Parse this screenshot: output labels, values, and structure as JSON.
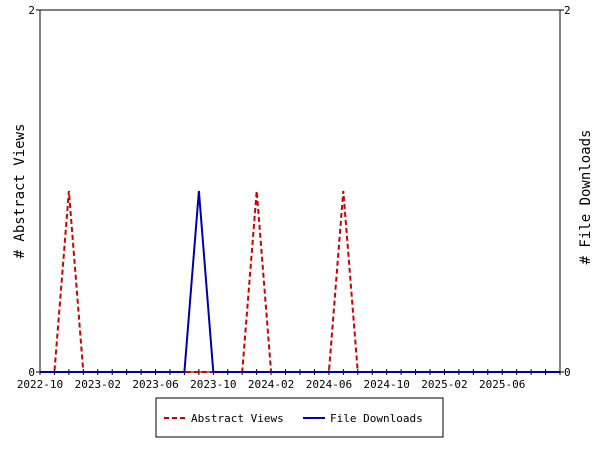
{
  "chart_data": {
    "type": "line",
    "x_tick_labels": [
      "2022-10",
      "2023-02",
      "2023-06",
      "2023-10",
      "2024-02",
      "2024-06",
      "2024-10",
      "2025-02",
      "2025-06"
    ],
    "x_range": [
      "2022-10",
      "2025-10"
    ],
    "y_left": {
      "label": "# Abstract Views",
      "range": [
        0,
        2
      ],
      "ticks": [
        "0",
        "2"
      ]
    },
    "y_right": {
      "label": "# File Downloads",
      "range": [
        0,
        2
      ],
      "ticks": [
        "0",
        "2"
      ]
    },
    "legend_position": "bottom-center",
    "grid": false,
    "series": [
      {
        "name": "Abstract Views",
        "axis": "left",
        "color": "#cc0000",
        "dash": "dashed",
        "x": [
          "2022-10",
          "2022-11",
          "2022-12",
          "2023-01",
          "2023-02",
          "2023-03",
          "2023-04",
          "2023-05",
          "2023-06",
          "2023-07",
          "2023-08",
          "2023-09",
          "2023-10",
          "2023-11",
          "2023-12",
          "2024-01",
          "2024-02",
          "2024-03",
          "2024-04",
          "2024-05",
          "2024-06",
          "2024-07",
          "2024-08",
          "2024-09",
          "2024-10",
          "2024-11",
          "2024-12",
          "2025-01",
          "2025-02",
          "2025-03",
          "2025-04",
          "2025-05",
          "2025-06",
          "2025-07",
          "2025-08",
          "2025-09",
          "2025-10"
        ],
        "values": [
          0,
          0,
          1,
          0,
          0,
          0,
          0,
          0,
          0,
          0,
          0,
          0,
          0,
          0,
          0,
          1,
          0,
          0,
          0,
          0,
          0,
          1,
          0,
          0,
          0,
          0,
          0,
          0,
          0,
          0,
          0,
          0,
          0,
          0,
          0,
          0,
          0
        ]
      },
      {
        "name": "File Downloads",
        "axis": "right",
        "color": "#0000aa",
        "dash": "solid",
        "x": [
          "2022-10",
          "2022-11",
          "2022-12",
          "2023-01",
          "2023-02",
          "2023-03",
          "2023-04",
          "2023-05",
          "2023-06",
          "2023-07",
          "2023-08",
          "2023-09",
          "2023-10",
          "2023-11",
          "2023-12",
          "2024-01",
          "2024-02",
          "2024-03",
          "2024-04",
          "2024-05",
          "2024-06",
          "2024-07",
          "2024-08",
          "2024-09",
          "2024-10",
          "2024-11",
          "2024-12",
          "2025-01",
          "2025-02",
          "2025-03",
          "2025-04",
          "2025-05",
          "2025-06",
          "2025-07",
          "2025-08",
          "2025-09",
          "2025-10"
        ],
        "values": [
          0,
          0,
          0,
          0,
          0,
          0,
          0,
          0,
          0,
          0,
          0,
          1,
          0,
          0,
          0,
          0,
          0,
          0,
          0,
          0,
          0,
          0,
          0,
          0,
          0,
          0,
          0,
          0,
          0,
          0,
          0,
          0,
          0,
          0,
          0,
          0,
          0
        ]
      }
    ]
  }
}
